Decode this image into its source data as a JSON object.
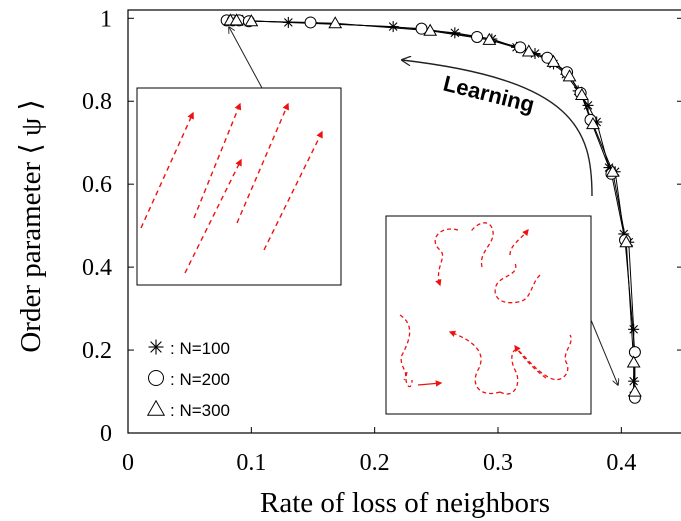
{
  "chart_data": {
    "type": "scatter",
    "xlabel": "Rate of loss of neighbors",
    "ylabel": "Order parameter ⟨ ψ ⟩",
    "xlim": [
      0,
      0.45
    ],
    "ylim": [
      0,
      1.02
    ],
    "x_ticks": [
      "0",
      "0.1",
      "0.2",
      "0.3",
      "0.4"
    ],
    "y_ticks": [
      "0",
      "0.2",
      "0.4",
      "0.6",
      "0.8",
      "1"
    ],
    "grid": false,
    "legend_position": "bottom-left",
    "annotation": "Learning",
    "series": [
      {
        "name": "N=100",
        "marker": "star",
        "x": [
          0.08,
          0.085,
          0.09,
          0.093,
          0.13,
          0.215,
          0.265,
          0.295,
          0.315,
          0.33,
          0.345,
          0.355,
          0.365,
          0.373,
          0.38,
          0.39,
          0.395,
          0.402,
          0.406,
          0.41,
          0.41,
          0.41
        ],
        "y": [
          0.995,
          0.995,
          0.995,
          0.995,
          0.99,
          0.98,
          0.965,
          0.95,
          0.93,
          0.915,
          0.89,
          0.865,
          0.825,
          0.79,
          0.75,
          0.64,
          0.63,
          0.48,
          0.46,
          0.25,
          0.125,
          0.09
        ]
      },
      {
        "name": "N=200",
        "marker": "circle",
        "x": [
          0.08,
          0.085,
          0.09,
          0.098,
          0.148,
          0.238,
          0.283,
          0.318,
          0.34,
          0.356,
          0.367,
          0.375,
          0.392,
          0.403,
          0.411,
          0.411
        ],
        "y": [
          0.995,
          0.995,
          0.995,
          0.993,
          0.99,
          0.975,
          0.955,
          0.93,
          0.905,
          0.87,
          0.82,
          0.755,
          0.625,
          0.465,
          0.195,
          0.085
        ]
      },
      {
        "name": "N=300",
        "marker": "triangle",
        "x": [
          0.083,
          0.088,
          0.1,
          0.168,
          0.245,
          0.293,
          0.325,
          0.345,
          0.358,
          0.368,
          0.377,
          0.393,
          0.404,
          0.41,
          0.411
        ],
        "y": [
          0.995,
          0.995,
          0.993,
          0.988,
          0.97,
          0.948,
          0.92,
          0.895,
          0.86,
          0.815,
          0.745,
          0.63,
          0.46,
          0.17,
          0.1
        ]
      }
    ]
  }
}
